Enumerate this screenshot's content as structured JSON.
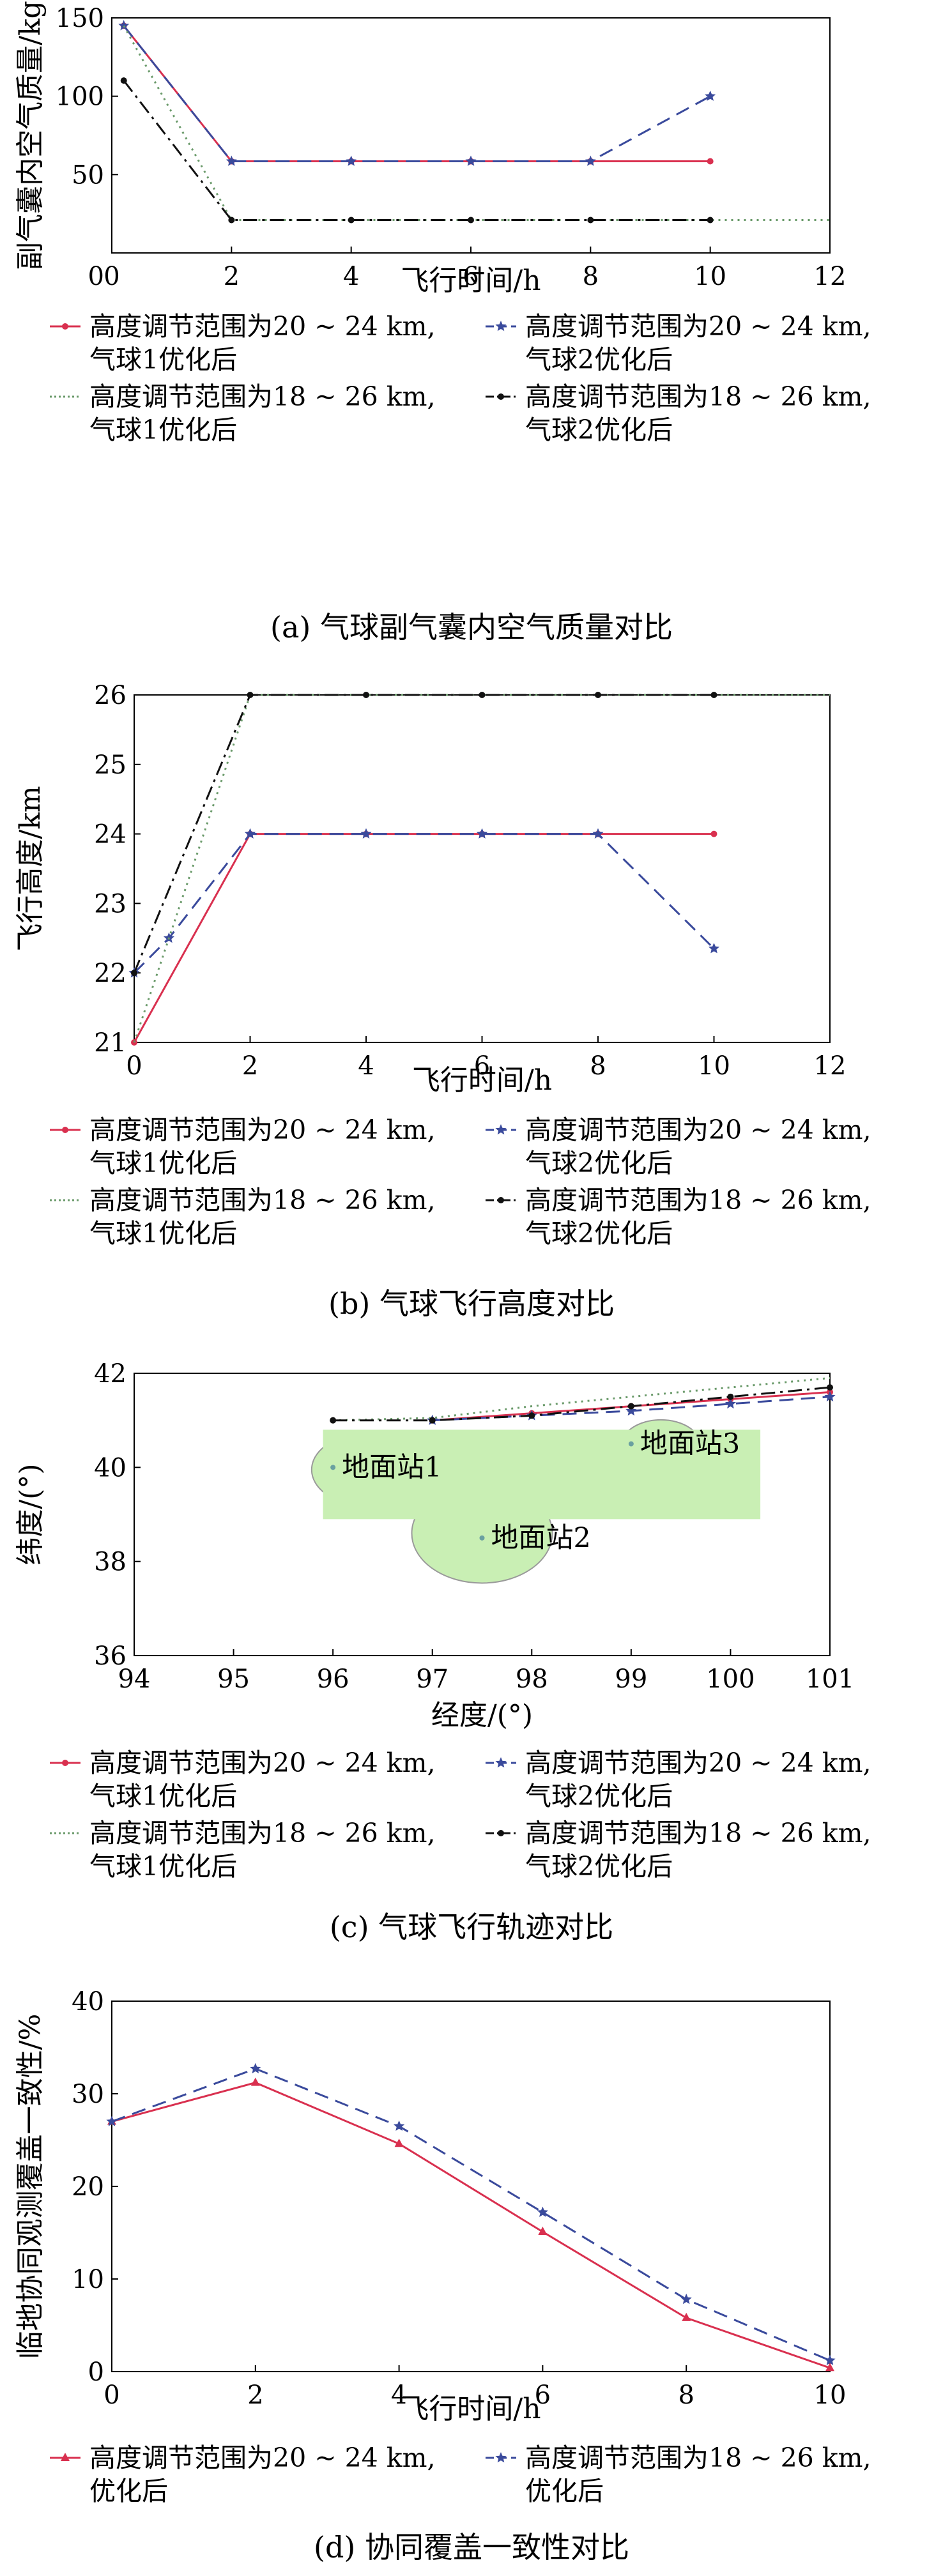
{
  "chart_data": [
    {
      "id": "a",
      "type": "line",
      "caption": "(a) 气球副气囊内空气质量对比",
      "xlabel": "飞行时间/h",
      "ylabel": "副气囊内空气质量/kg",
      "xlim": [
        0,
        12
      ],
      "ylim": [
        0,
        150
      ],
      "xticks": [
        0,
        2,
        4,
        6,
        8,
        10,
        12
      ],
      "yticks": [
        50,
        100,
        150
      ],
      "grid": false,
      "legend_position": "below",
      "series": [
        {
          "name": "高度调节范围为20 ~ 24 km,\n气球1优化后",
          "color": "#d9304f",
          "dash": "",
          "marker": "dot",
          "x": [
            0.2,
            2,
            4,
            6,
            8,
            10
          ],
          "y": [
            145,
            58.5,
            58.5,
            58.5,
            58.5,
            58.5
          ]
        },
        {
          "name": "高度调节范围为20 ~ 24 km,\n气球2优化后",
          "color": "#3a4a9c",
          "dash": "22,12",
          "marker": "star",
          "x": [
            0.2,
            2,
            4,
            6,
            8,
            10
          ],
          "y": [
            145,
            58.5,
            58.5,
            58.5,
            58.5,
            100
          ]
        },
        {
          "name": "高度调节范围为18 ~ 26 km,\n气球1优化后",
          "color": "#6a9a6a",
          "dash": "3,7",
          "marker": "none",
          "x": [
            0.2,
            2,
            4,
            6,
            8,
            10,
            12
          ],
          "y": [
            145,
            21,
            21,
            21,
            21,
            21,
            21
          ]
        },
        {
          "name": "高度调节范围为18 ~ 26 km,\n气球2优化后",
          "color": "#111111",
          "dash": "22,8,4,8",
          "marker": "dot",
          "x": [
            0.2,
            2,
            4,
            6,
            8,
            10
          ],
          "y": [
            110,
            21,
            21,
            21,
            21,
            21
          ]
        }
      ]
    },
    {
      "id": "b",
      "type": "line",
      "caption": "(b) 气球飞行高度对比",
      "xlabel": "飞行时间/h",
      "ylabel": "飞行高度/km",
      "xlim": [
        0,
        12
      ],
      "ylim": [
        21,
        26
      ],
      "xticks": [
        0,
        2,
        4,
        6,
        8,
        10,
        12
      ],
      "yticks": [
        21,
        22,
        23,
        24,
        25,
        26
      ],
      "grid": false,
      "legend_position": "below",
      "series": [
        {
          "name": "高度调节范围为20 ~ 24 km,\n气球1优化后",
          "color": "#d9304f",
          "dash": "",
          "marker": "dot",
          "x": [
            0,
            2,
            4,
            6,
            8,
            10
          ],
          "y": [
            21,
            24,
            24,
            24,
            24,
            24
          ]
        },
        {
          "name": "高度调节范围为20 ~ 24 km,\n气球2优化后",
          "color": "#3a4a9c",
          "dash": "22,12",
          "marker": "star",
          "x": [
            0,
            0.6,
            2,
            4,
            6,
            8,
            10
          ],
          "y": [
            22,
            22.5,
            24,
            24,
            24,
            24,
            22.35
          ]
        },
        {
          "name": "高度调节范围为18 ~ 26 km,\n气球1优化后",
          "color": "#6a9a6a",
          "dash": "3,7",
          "marker": "none",
          "x": [
            0,
            2,
            4,
            6,
            8,
            10,
            12
          ],
          "y": [
            21,
            26,
            26,
            26,
            26,
            26,
            26
          ]
        },
        {
          "name": "高度调节范围为18 ~ 26 km,\n气球2优化后",
          "color": "#111111",
          "dash": "22,8,4,8",
          "marker": "dot",
          "x": [
            0,
            2,
            4,
            6,
            8,
            10
          ],
          "y": [
            22,
            26,
            26,
            26,
            26,
            26
          ]
        }
      ]
    },
    {
      "id": "c",
      "type": "line",
      "caption": "(c) 气球飞行轨迹对比",
      "xlabel": "经度/(°)",
      "ylabel": "纬度/(°)",
      "xlim": [
        94,
        101
      ],
      "ylim": [
        36,
        42
      ],
      "xticks": [
        94,
        95,
        96,
        97,
        98,
        99,
        100,
        101
      ],
      "yticks": [
        36,
        38,
        40,
        42
      ],
      "grid": false,
      "legend_position": "below",
      "coverage_color": "#c9efb4",
      "stations": [
        {
          "label": "地面站1",
          "lon": 96.0,
          "lat": 40.0
        },
        {
          "label": "地面站2",
          "lon": 97.5,
          "lat": 38.5
        },
        {
          "label": "地面站3",
          "lon": 99.0,
          "lat": 40.5
        }
      ],
      "series": [
        {
          "name": "高度调节范围为20 ~ 24 km,\n气球1优化后",
          "color": "#d9304f",
          "dash": "",
          "marker": "dot",
          "x": [
            97,
            98,
            99,
            100,
            101
          ],
          "y": [
            41.0,
            41.15,
            41.3,
            41.45,
            41.6
          ]
        },
        {
          "name": "高度调节范围为20 ~ 24 km,\n气球2优化后",
          "color": "#3a4a9c",
          "dash": "22,12",
          "marker": "star",
          "x": [
            97,
            98,
            99,
            100,
            101
          ],
          "y": [
            41.0,
            41.1,
            41.2,
            41.35,
            41.5
          ]
        },
        {
          "name": "高度调节范围为18 ~ 26 km,\n气球1优化后",
          "color": "#6a9a6a",
          "dash": "3,7",
          "marker": "none",
          "x": [
            96,
            97,
            98,
            99,
            100,
            101
          ],
          "y": [
            41.0,
            41.05,
            41.3,
            41.5,
            41.7,
            41.9
          ]
        },
        {
          "name": "高度调节范围为18 ~ 26 km,\n气球2优化后",
          "color": "#111111",
          "dash": "22,8,4,8",
          "marker": "dot",
          "x": [
            96,
            97,
            98,
            99,
            100,
            101
          ],
          "y": [
            41.0,
            41.0,
            41.1,
            41.3,
            41.5,
            41.7
          ]
        }
      ]
    },
    {
      "id": "d",
      "type": "line",
      "caption": "(d) 协同覆盖一致性对比",
      "xlabel": "飞行时间/h",
      "ylabel": "临地协同观测覆盖一致性/%",
      "xlim": [
        0,
        10
      ],
      "ylim": [
        0,
        40
      ],
      "xticks": [
        0,
        2,
        4,
        6,
        8,
        10
      ],
      "yticks": [
        0,
        10,
        20,
        30,
        40
      ],
      "grid": false,
      "legend_position": "below",
      "series": [
        {
          "name": "高度调节范围为20 ~ 24 km,\n优化后",
          "color": "#d9304f",
          "dash": "",
          "marker": "tri",
          "x": [
            0,
            2,
            4,
            6,
            8,
            10
          ],
          "y": [
            27,
            31.2,
            24.6,
            15.1,
            5.8,
            0.4
          ]
        },
        {
          "name": "高度调节范围为18 ~ 26 km,\n优化后",
          "color": "#3a4a9c",
          "dash": "22,12",
          "marker": "star",
          "x": [
            0,
            2,
            4,
            6,
            8,
            10
          ],
          "y": [
            27,
            32.7,
            26.5,
            17.2,
            7.8,
            1.2
          ]
        }
      ]
    }
  ]
}
